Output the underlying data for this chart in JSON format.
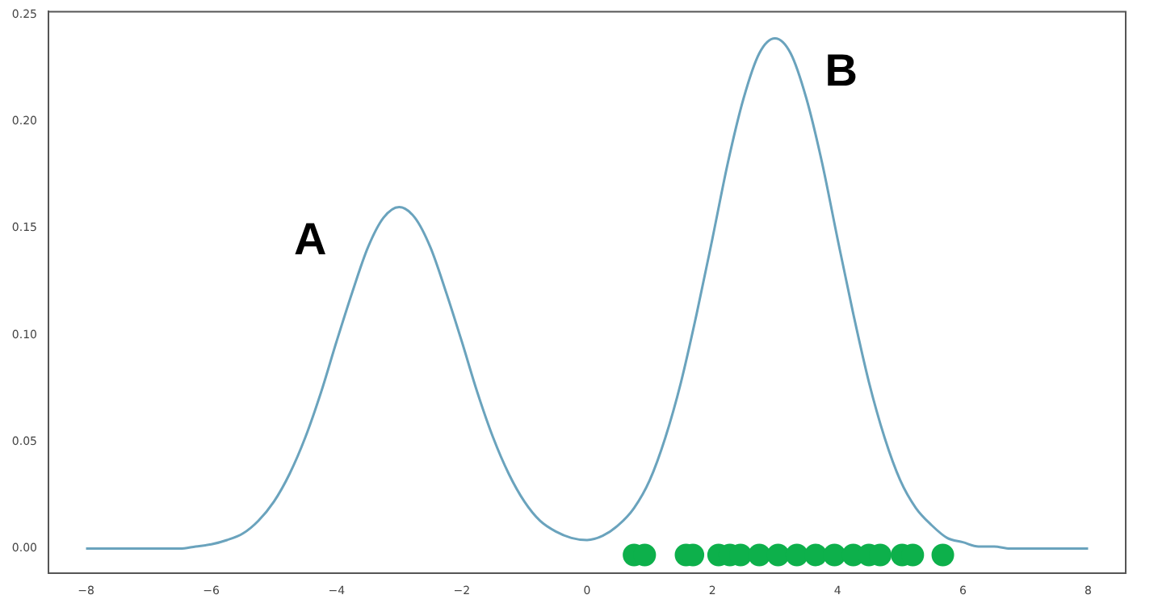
{
  "chart_data": {
    "type": "line",
    "x": [
      -8,
      -7.75,
      -7.5,
      -7.25,
      -7,
      -6.75,
      -6.5,
      -6.25,
      -6,
      -5.75,
      -5.5,
      -5.25,
      -5,
      -4.75,
      -4.5,
      -4.25,
      -4,
      -3.75,
      -3.5,
      -3.25,
      -3,
      -2.75,
      -2.5,
      -2.25,
      -2,
      -1.75,
      -1.5,
      -1.25,
      -1,
      -0.75,
      -0.5,
      -0.25,
      0,
      0.25,
      0.5,
      0.75,
      1,
      1.25,
      1.5,
      1.75,
      2,
      2.25,
      2.5,
      2.75,
      3,
      3.25,
      3.5,
      3.75,
      4,
      4.25,
      4.5,
      4.75,
      5,
      5.25,
      5.5,
      5.75,
      6,
      6.25,
      6.5,
      6.75,
      7,
      7.25,
      7.5,
      7.75,
      8
    ],
    "series": [
      {
        "color": "#6aa3bd",
        "marker": "none",
        "values": [
          0,
          0,
          0,
          0,
          0,
          0,
          0,
          0.001,
          0.002,
          0.004,
          0.007,
          0.013,
          0.022,
          0.035,
          0.052,
          0.073,
          0.097,
          0.12,
          0.141,
          0.155,
          0.16,
          0.155,
          0.141,
          0.12,
          0.097,
          0.073,
          0.052,
          0.035,
          0.022,
          0.013,
          0.008,
          0.005,
          0.004,
          0.006,
          0.011,
          0.019,
          0.032,
          0.052,
          0.078,
          0.11,
          0.145,
          0.181,
          0.211,
          0.232,
          0.239,
          0.232,
          0.211,
          0.181,
          0.145,
          0.11,
          0.078,
          0.052,
          0.032,
          0.019,
          0.011,
          0.005,
          0.003,
          0.001,
          0.001,
          0,
          0,
          0,
          0,
          0,
          0
        ]
      },
      {
        "type": "scatter",
        "color": "#0db04b",
        "marker": "circle",
        "x": [
          0.75,
          0.92,
          1.58,
          1.69,
          2.1,
          2.28,
          2.45,
          2.75,
          3.05,
          3.35,
          3.65,
          3.95,
          4.25,
          4.5,
          4.68,
          5.03,
          5.2,
          5.68
        ],
        "values": [
          -0.003,
          -0.003,
          -0.003,
          -0.003,
          -0.003,
          -0.003,
          -0.003,
          -0.003,
          -0.003,
          -0.003,
          -0.003,
          -0.003,
          -0.003,
          -0.003,
          -0.003,
          -0.003,
          -0.003,
          -0.003
        ]
      }
    ],
    "xlim": [
      -8.6,
      8.6
    ],
    "xticks": [
      {
        "value": -8,
        "label": "−8"
      },
      {
        "value": -6,
        "label": "−6"
      },
      {
        "value": -4,
        "label": "−4"
      },
      {
        "value": -2,
        "label": "−2"
      },
      0,
      2,
      4,
      6,
      8
    ],
    "ylim": [
      -0.0115,
      0.2515
    ],
    "yticks": [
      {
        "value": 0,
        "label": "0.00"
      },
      {
        "value": 0.05,
        "label": "0.05"
      },
      {
        "value": 0.1,
        "label": "0.10"
      },
      {
        "value": 0.15,
        "label": "0.15"
      },
      {
        "value": 0.2,
        "label": "0.20"
      },
      {
        "value": 0.25,
        "label": "0.25"
      }
    ],
    "annotations": [
      "A",
      "B"
    ],
    "legend": false
  }
}
